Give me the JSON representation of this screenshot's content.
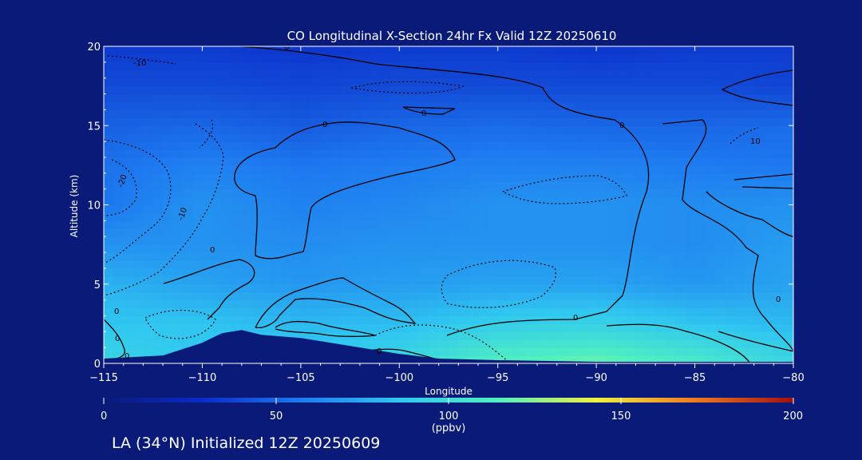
{
  "chart_data": {
    "type": "heatmap",
    "title": "CO Longitudinal X-Section 24hr  Fx Valid 12Z 20250610",
    "xlabel": "Longitude",
    "ylabel": "Altitude (km)",
    "xlim": [
      -115,
      -80
    ],
    "ylim": [
      0,
      20
    ],
    "x_ticks": [
      -115,
      -110,
      -105,
      -100,
      -95,
      -90,
      -85,
      -80
    ],
    "x_tick_labels": [
      "−115",
      "−110",
      "−105",
      "−100",
      "−95",
      "−90",
      "−85",
      "−80"
    ],
    "y_ticks": [
      0,
      5,
      10,
      15,
      20
    ],
    "y_tick_labels": [
      "0",
      "5",
      "10",
      "15",
      "20"
    ],
    "colorbar": {
      "label": "(ppbv)",
      "range": [
        0,
        200
      ],
      "ticks": [
        0,
        50,
        100,
        150,
        200
      ],
      "tick_labels": [
        "0",
        "50",
        "100",
        "150",
        "200"
      ],
      "colors": [
        "#0a1a78",
        "#0a2cc8",
        "#1e7af0",
        "#30c8f0",
        "#50f0c0",
        "#f0f040",
        "#f07a20",
        "#a01010"
      ]
    },
    "contour_labels": [
      "-10",
      "0",
      "0",
      "0",
      "0",
      "-20",
      "-10",
      "0",
      "0",
      "0",
      "0",
      "0",
      "10",
      "0",
      "0"
    ],
    "contour_levels": [
      -20,
      -10,
      0,
      10
    ],
    "terrain": {
      "x": [
        -115,
        -112,
        -110,
        -109,
        -108,
        -107,
        -105,
        -102,
        -100,
        -98,
        -95,
        -90,
        -85,
        -82,
        -80
      ],
      "y": [
        0.3,
        0.5,
        1.3,
        1.9,
        2.1,
        1.8,
        1.6,
        1.0,
        0.6,
        0.3,
        0.2,
        0.1,
        0.1,
        0.1,
        0.1
      ]
    },
    "co_field": {
      "x": [
        -115,
        -110,
        -105,
        -100,
        -95,
        -90,
        -85,
        -80
      ],
      "y": [
        0,
        2.5,
        5,
        7.5,
        10,
        12.5,
        15,
        17.5,
        20
      ],
      "z": [
        [
          95,
          85,
          90,
          95,
          115,
          120,
          110,
          95
        ],
        [
          85,
          85,
          80,
          82,
          90,
          92,
          85,
          80
        ],
        [
          78,
          72,
          68,
          70,
          72,
          72,
          68,
          72
        ],
        [
          66,
          66,
          64,
          66,
          66,
          66,
          64,
          70
        ],
        [
          56,
          66,
          60,
          62,
          66,
          66,
          64,
          66
        ],
        [
          54,
          60,
          56,
          58,
          60,
          60,
          58,
          56
        ],
        [
          48,
          50,
          46,
          50,
          52,
          50,
          50,
          52
        ],
        [
          40,
          40,
          38,
          40,
          40,
          40,
          40,
          38
        ],
        [
          34,
          34,
          32,
          34,
          34,
          32,
          34,
          34
        ]
      ]
    }
  },
  "footer": "LA (34°N) Initialized 12Z 20250609"
}
